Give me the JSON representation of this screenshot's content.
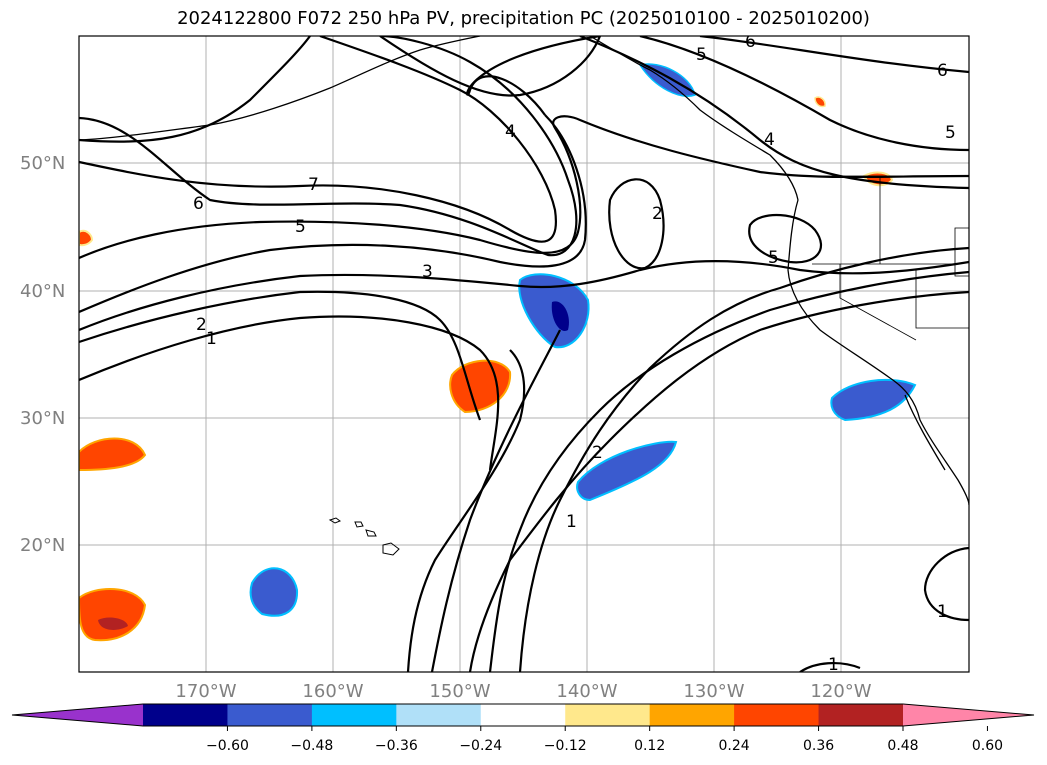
{
  "title": "2024122800 F072 250 hPa PV, precipitation PC (2025010100 - 2025010200)",
  "map": {
    "lat_labels": [
      "50°N",
      "40°N",
      "30°N",
      "20°N"
    ],
    "lon_labels": [
      "170°W",
      "160°W",
      "150°W",
      "140°W",
      "130°W",
      "120°W"
    ],
    "contour_labels": [
      "7",
      "6",
      "5",
      "4",
      "3",
      "2",
      "1",
      "2",
      "5",
      "5",
      "6",
      "6",
      "5",
      "4",
      "2",
      "1",
      "1",
      "1"
    ]
  },
  "colorbar": {
    "colors": [
      "#9932cc",
      "#00008b",
      "#3a5bcf",
      "#00bfff",
      "#b0e0f8",
      "#ffffff",
      "#ffe88c",
      "#ffa500",
      "#ff4500",
      "#b22222",
      "#ff85a8"
    ],
    "ticks": [
      "−0.60",
      "−0.48",
      "−0.36",
      "−0.24",
      "−0.12",
      "0.12",
      "0.24",
      "0.36",
      "0.48",
      "0.60"
    ]
  }
}
